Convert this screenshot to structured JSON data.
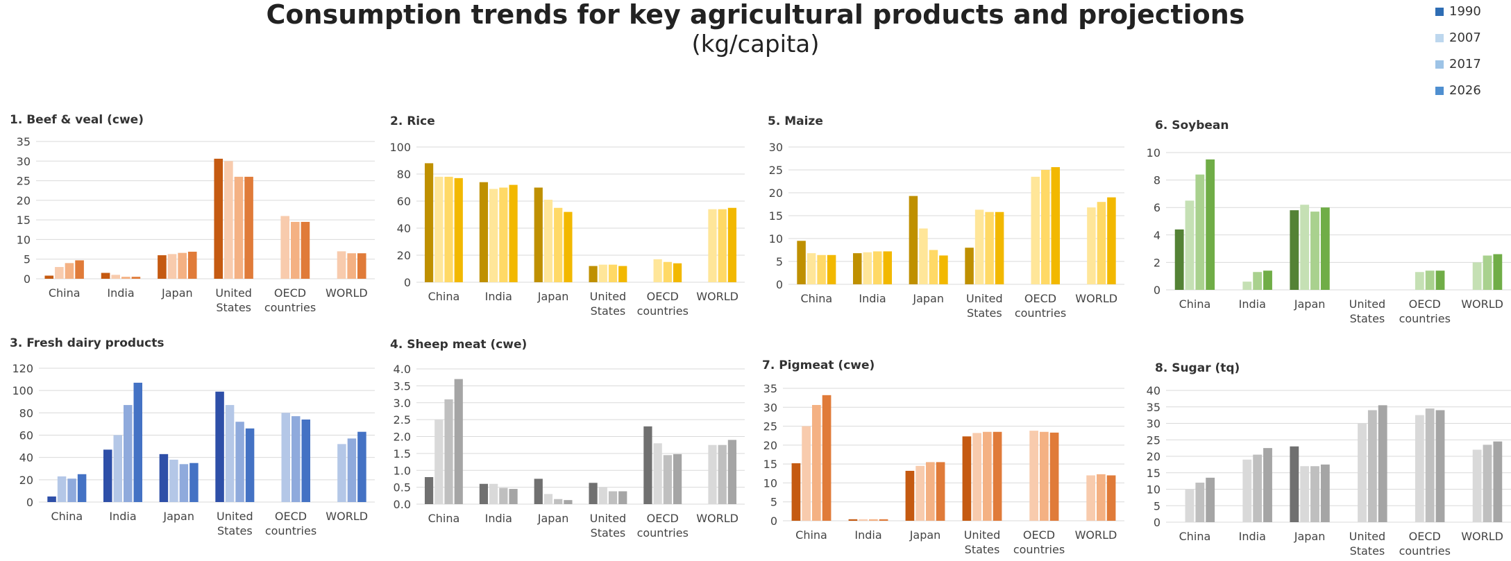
{
  "page": {
    "title": "Consumption trends for key agricultural products and projections",
    "subtitle": "(kg/capita)"
  },
  "legend": [
    {
      "label": "1990",
      "color": "#2E6DB4"
    },
    {
      "label": "2007",
      "color": "#BDD7EE"
    },
    {
      "label": "2017",
      "color": "#9DC3E6"
    },
    {
      "label": "2026",
      "color": "#4F8FD0"
    }
  ],
  "chart_data": [
    {
      "type": "bar",
      "title": "1. Beef & veal (cwe)",
      "categories": [
        "China",
        "India",
        "Japan",
        "United States",
        "OECD countries",
        "WORLD"
      ],
      "yticks": [
        "0",
        "5",
        "10",
        "15",
        "20",
        "25",
        "30",
        "35"
      ],
      "ylim": [
        0,
        35
      ],
      "colors": [
        "#C55A11",
        "#F8CBAD",
        "#F4B183",
        "#E07B39"
      ],
      "series": [
        {
          "values": [
            0.8,
            1.5,
            6.0,
            30.6,
            null,
            null
          ]
        },
        {
          "values": [
            3.0,
            1.0,
            6.3,
            30.0,
            16.0,
            7.0
          ]
        },
        {
          "values": [
            4.0,
            0.5,
            6.6,
            26.0,
            14.5,
            6.5
          ]
        },
        {
          "values": [
            4.7,
            0.5,
            6.9,
            26.0,
            14.5,
            6.5
          ]
        }
      ]
    },
    {
      "type": "bar",
      "title": "2. Rice",
      "categories": [
        "China",
        "India",
        "Japan",
        "United States",
        "OECD countries",
        "WORLD"
      ],
      "yticks": [
        "0",
        "20",
        "40",
        "60",
        "80",
        "100"
      ],
      "ylim": [
        0,
        100
      ],
      "colors": [
        "#BF9000",
        "#FFE699",
        "#FFD966",
        "#F2B800"
      ],
      "series": [
        {
          "values": [
            88,
            74,
            70,
            12,
            null,
            null
          ]
        },
        {
          "values": [
            78,
            69,
            61,
            13,
            17,
            54
          ]
        },
        {
          "values": [
            78,
            70,
            55,
            13,
            15,
            54
          ]
        },
        {
          "values": [
            77,
            72,
            52,
            12,
            14,
            55
          ]
        }
      ]
    },
    {
      "type": "bar",
      "title": "5. Maize",
      "categories": [
        "China",
        "India",
        "Japan",
        "United States",
        "OECD countries",
        "WORLD"
      ],
      "yticks": [
        "0",
        "5",
        "10",
        "15",
        "20",
        "25",
        "30"
      ],
      "ylim": [
        0,
        30
      ],
      "colors": [
        "#BF9000",
        "#FFE699",
        "#FFD966",
        "#F2B800"
      ],
      "series": [
        {
          "values": [
            9.5,
            6.8,
            19.3,
            8.0,
            null,
            null
          ]
        },
        {
          "values": [
            6.8,
            7.0,
            12.2,
            16.3,
            23.5,
            16.8
          ]
        },
        {
          "values": [
            6.4,
            7.2,
            7.5,
            15.8,
            25.0,
            18.0
          ]
        },
        {
          "values": [
            6.4,
            7.2,
            6.3,
            15.8,
            25.6,
            19.0
          ]
        }
      ]
    },
    {
      "type": "bar",
      "title": "6. Soybean",
      "categories": [
        "China",
        "India",
        "Japan",
        "United States",
        "OECD countries",
        "WORLD"
      ],
      "yticks": [
        "0",
        "2",
        "4",
        "6",
        "8",
        "10"
      ],
      "ylim": [
        0,
        10
      ],
      "colors": [
        "#548235",
        "#C5E0B4",
        "#A9D18E",
        "#70AD47"
      ],
      "series": [
        {
          "values": [
            4.4,
            null,
            5.8,
            null,
            null,
            null
          ]
        },
        {
          "values": [
            6.5,
            0.6,
            6.2,
            null,
            1.3,
            2.0
          ]
        },
        {
          "values": [
            8.4,
            1.3,
            5.7,
            null,
            1.4,
            2.5
          ]
        },
        {
          "values": [
            9.5,
            1.4,
            6.0,
            null,
            1.4,
            2.6
          ]
        }
      ]
    },
    {
      "type": "bar",
      "title": "3. Fresh dairy products",
      "categories": [
        "China",
        "India",
        "Japan",
        "United States",
        "OECD countries",
        "WORLD"
      ],
      "yticks": [
        "0",
        "20",
        "40",
        "60",
        "80",
        "100",
        "120"
      ],
      "ylim": [
        0,
        120
      ],
      "colors": [
        "#2E4FA8",
        "#B4C7E7",
        "#8FAADC",
        "#4472C4"
      ],
      "series": [
        {
          "values": [
            5,
            47,
            43,
            99,
            null,
            null
          ]
        },
        {
          "values": [
            23,
            60,
            38,
            87,
            80,
            52
          ]
        },
        {
          "values": [
            21,
            87,
            34,
            72,
            77,
            57
          ]
        },
        {
          "values": [
            25,
            107,
            35,
            66,
            74,
            63
          ]
        }
      ]
    },
    {
      "type": "bar",
      "title": "4. Sheep meat (cwe)",
      "categories": [
        "China",
        "India",
        "Japan",
        "United States",
        "OECD countries",
        "WORLD"
      ],
      "yticks": [
        "0.0",
        "0.5",
        "1.0",
        "1.5",
        "2.0",
        "2.5",
        "3.0",
        "3.5",
        "4.0"
      ],
      "ylim": [
        0,
        4
      ],
      "colors": [
        "#707070",
        "#D9D9D9",
        "#BFBFBF",
        "#A5A5A5"
      ],
      "series": [
        {
          "values": [
            0.8,
            0.6,
            0.75,
            0.63,
            2.3,
            null
          ]
        },
        {
          "values": [
            2.5,
            0.6,
            0.3,
            0.5,
            1.8,
            1.75
          ]
        },
        {
          "values": [
            3.1,
            0.48,
            0.15,
            0.38,
            1.45,
            1.75
          ]
        },
        {
          "values": [
            3.7,
            0.45,
            0.12,
            0.38,
            1.48,
            1.9
          ]
        }
      ]
    },
    {
      "type": "bar",
      "title": "7. Pigmeat (cwe)",
      "categories": [
        "China",
        "India",
        "Japan",
        "United States",
        "OECD countries",
        "WORLD"
      ],
      "yticks": [
        "0",
        "5",
        "10",
        "15",
        "20",
        "25",
        "30",
        "35"
      ],
      "ylim": [
        0,
        35
      ],
      "colors": [
        "#C55A11",
        "#F8CBAD",
        "#F4B183",
        "#E07B39"
      ],
      "series": [
        {
          "values": [
            15.2,
            0.4,
            13.2,
            22.3,
            null,
            null
          ]
        },
        {
          "values": [
            25.0,
            0.4,
            14.5,
            23.2,
            23.8,
            12.0
          ]
        },
        {
          "values": [
            30.6,
            0.4,
            15.5,
            23.5,
            23.5,
            12.3
          ]
        },
        {
          "values": [
            33.2,
            0.4,
            15.5,
            23.5,
            23.3,
            12.0
          ]
        }
      ]
    },
    {
      "type": "bar",
      "title": "8. Sugar (tq)",
      "categories": [
        "China",
        "India",
        "Japan",
        "United States",
        "OECD countries",
        "WORLD"
      ],
      "yticks": [
        "0",
        "5",
        "10",
        "15",
        "20",
        "25",
        "30",
        "35",
        "40"
      ],
      "ylim": [
        0,
        40
      ],
      "colors": [
        "#707070",
        "#D9D9D9",
        "#BFBFBF",
        "#A5A5A5"
      ],
      "series": [
        {
          "values": [
            null,
            null,
            23.0,
            null,
            null,
            null
          ]
        },
        {
          "values": [
            10.0,
            19.0,
            17.0,
            30.0,
            32.5,
            22.0
          ]
        },
        {
          "values": [
            12.0,
            20.5,
            17.0,
            34.0,
            34.5,
            23.5
          ]
        },
        {
          "values": [
            13.5,
            22.5,
            17.5,
            35.5,
            34.0,
            24.5
          ]
        }
      ]
    }
  ]
}
